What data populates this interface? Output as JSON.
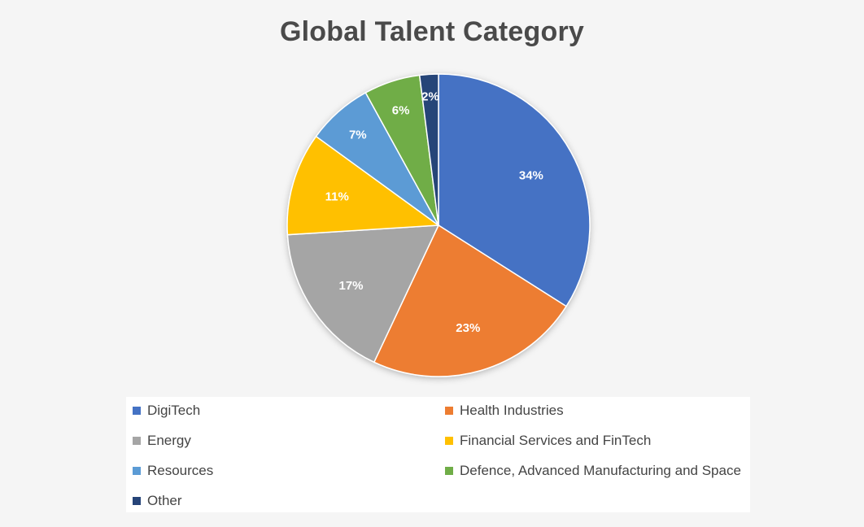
{
  "chart_data": {
    "type": "pie",
    "title": "Global Talent Category",
    "categories": [
      "DigiTech",
      "Health Industries",
      "Energy",
      "Financial Services and FinTech",
      "Resources",
      "Defence, Advanced Manufacturing and Space",
      "Other"
    ],
    "values": [
      34,
      23,
      17,
      11,
      7,
      6,
      2
    ],
    "labels": [
      "34%",
      "23%",
      "17%",
      "11%",
      "7%",
      "6%",
      "2%"
    ],
    "colors": [
      "#4472c4",
      "#ed7d31",
      "#a5a5a5",
      "#ffc000",
      "#5b9bd5",
      "#70ad47",
      "#264478"
    ],
    "legend_position": "bottom"
  }
}
